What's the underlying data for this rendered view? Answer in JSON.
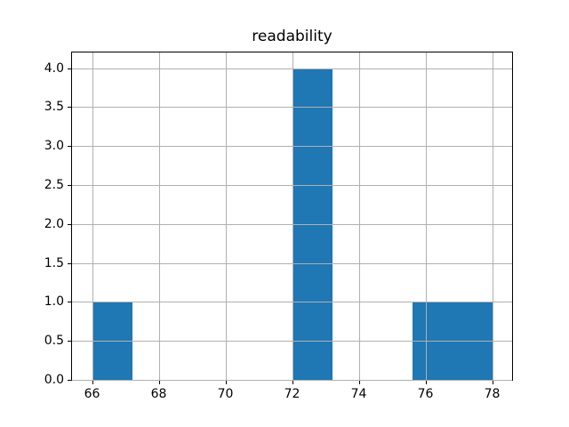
{
  "figure": {
    "background": "#ffffff"
  },
  "chart_data": {
    "type": "histogram",
    "title": "readability",
    "xlabel": "",
    "ylabel": "",
    "bar_color": "#1f77b4",
    "grid": true,
    "grid_color": "#b0b0b0",
    "spine_color": "#000000",
    "xlim": [
      65.4,
      78.6
    ],
    "ylim": [
      0,
      4.2
    ],
    "bin_edges": [
      66.0,
      67.2,
      68.4,
      69.6,
      70.8,
      72.0,
      73.2,
      74.4,
      75.6,
      76.8,
      78.0
    ],
    "counts": [
      1,
      0,
      0,
      0,
      0,
      4,
      0,
      0,
      1,
      1
    ],
    "xticks": [
      {
        "value": 66,
        "label": "66"
      },
      {
        "value": 68,
        "label": "68"
      },
      {
        "value": 70,
        "label": "70"
      },
      {
        "value": 72,
        "label": "72"
      },
      {
        "value": 74,
        "label": "74"
      },
      {
        "value": 76,
        "label": "76"
      },
      {
        "value": 78,
        "label": "78"
      }
    ],
    "yticks": [
      {
        "value": 0.0,
        "label": "0.0"
      },
      {
        "value": 0.5,
        "label": "0.5"
      },
      {
        "value": 1.0,
        "label": "1.0"
      },
      {
        "value": 1.5,
        "label": "1.5"
      },
      {
        "value": 2.0,
        "label": "2.0"
      },
      {
        "value": 2.5,
        "label": "2.5"
      },
      {
        "value": 3.0,
        "label": "3.0"
      },
      {
        "value": 3.5,
        "label": "3.5"
      },
      {
        "value": 4.0,
        "label": "4.0"
      }
    ]
  }
}
